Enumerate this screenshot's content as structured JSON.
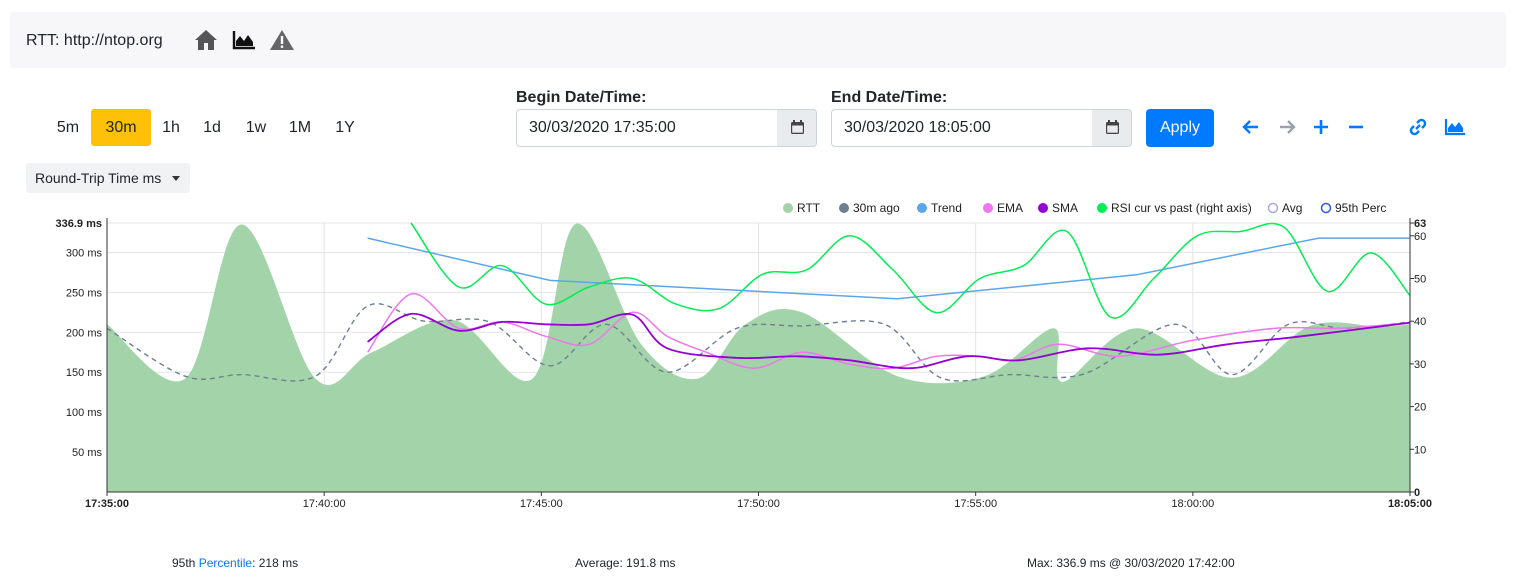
{
  "header": {
    "title": "RTT: http://ntop.org",
    "icons": [
      "home-icon",
      "area-chart-icon",
      "warning-icon"
    ]
  },
  "ranges": [
    {
      "label": "5m",
      "active": false
    },
    {
      "label": "30m",
      "active": true
    },
    {
      "label": "1h",
      "active": false
    },
    {
      "label": "1d",
      "active": false
    },
    {
      "label": "1w",
      "active": false
    },
    {
      "label": "1M",
      "active": false
    },
    {
      "label": "1Y",
      "active": false
    }
  ],
  "begin": {
    "label": "Begin Date/Time:",
    "value": "30/03/2020 17:35:00"
  },
  "end": {
    "label": "End Date/Time:",
    "value": "30/03/2020 18:05:00"
  },
  "apply_label": "Apply",
  "nav_icons": [
    "arrow-left-icon",
    "arrow-right-icon",
    "zoom-in-icon",
    "zoom-out-icon",
    "link-icon",
    "area-chart-icon"
  ],
  "metric": {
    "selected": "Round-Trip Time ms"
  },
  "colors": {
    "rtt": "#a3d4a9",
    "ago": "#6e7f91",
    "trend": "#5aa6e8",
    "ema": "#ee77ee",
    "sma": "#9400d3",
    "rsi": "#00ee55",
    "avg": "#a9a9d9",
    "perc": "#3355ee",
    "accent": "#007bff",
    "active": "#ffc107"
  },
  "chart_data": {
    "type": "area",
    "x_unit": "time",
    "x_ticks": [
      "17:35:00",
      "17:40:00",
      "17:45:00",
      "17:50:00",
      "17:55:00",
      "18:00:00",
      "18:05:00"
    ],
    "y_ticks_left": [
      "336.9 ms",
      "300 ms",
      "250 ms",
      "200 ms",
      "150 ms",
      "100 ms",
      "50 ms"
    ],
    "y_left_max": 336.9,
    "y_ticks_right": [
      "63",
      "60",
      "50",
      "40",
      "30",
      "20",
      "10",
      "0"
    ],
    "y_right_max": 63,
    "legend": [
      "RTT",
      "30m ago",
      "Trend",
      "EMA",
      "SMA",
      "RSI cur vs past (right axis)",
      "Avg",
      "95th Perc"
    ],
    "series": [
      {
        "name": "RTT",
        "x_min": [
          0,
          1.8,
          3.1,
          4.8,
          6.1,
          8,
          9.8,
          10.8,
          12.3,
          13.6,
          14.7,
          16,
          18.2,
          20.2,
          21.8,
          22,
          23.7,
          25.9,
          27.7,
          29.3,
          30
        ],
        "y": [
          210,
          142,
          335,
          142,
          175,
          215,
          142,
          336,
          185,
          142,
          210,
          225,
          145,
          145,
          205,
          138,
          205,
          143,
          208,
          207,
          210
        ]
      },
      {
        "name": "30m ago",
        "x_min": [
          0,
          1.8,
          3.1,
          4.8,
          6,
          7.3,
          8.8,
          10.2,
          11.5,
          12.9,
          14.5,
          16,
          17.9,
          19.2,
          20.8,
          22.5,
          24.6,
          25.9,
          27.2,
          28.5,
          30
        ],
        "y": [
          205,
          145,
          147,
          145,
          233,
          214,
          213,
          158,
          210,
          150,
          205,
          208,
          210,
          143,
          147,
          148,
          210,
          147,
          210,
          205,
          213
        ]
      },
      {
        "name": "Trend",
        "x_min": [
          6,
          10.2,
          14.4,
          18.2,
          23.7,
          27.9,
          30
        ],
        "y": [
          318,
          265,
          253,
          242,
          272,
          318,
          318
        ]
      },
      {
        "name": "EMA",
        "x_min": [
          6,
          7,
          8.1,
          9.1,
          10.1,
          11.1,
          12.1,
          12.9,
          13.8,
          14.9,
          16,
          17.1,
          18.1,
          19.1,
          20.1,
          20.9,
          21.9,
          23.3,
          25,
          26.9,
          28.4,
          30
        ],
        "y": [
          175,
          248,
          205,
          213,
          195,
          185,
          225,
          195,
          175,
          155,
          175,
          160,
          155,
          170,
          170,
          165,
          185,
          170,
          190,
          205,
          205,
          212
        ]
      },
      {
        "name": "SMA",
        "x_min": [
          6,
          7,
          8.1,
          9.1,
          10.1,
          11.1,
          12.1,
          12.9,
          14.5,
          15.9,
          17.1,
          18.5,
          19.8,
          21,
          22.6,
          24.2,
          25.8,
          27.5,
          30
        ],
        "y": [
          188,
          223,
          202,
          213,
          210,
          210,
          222,
          180,
          168,
          170,
          165,
          155,
          170,
          165,
          180,
          172,
          185,
          195,
          212
        ]
      },
      {
        "name": "RSI cur vs past (right axis)",
        "x_min": [
          7,
          8.1,
          9.1,
          10.1,
          11.1,
          12.1,
          13.1,
          14.1,
          15.1,
          16.1,
          17.1,
          18.1,
          19.1,
          20.1,
          21.1,
          22.1,
          23.1,
          24.1,
          25.1,
          26.1,
          27.1,
          28.1,
          29.1,
          30
        ],
        "y": [
          63,
          48,
          53,
          44,
          48,
          50,
          44,
          43,
          51,
          52,
          60,
          52,
          42,
          50,
          53,
          61,
          41,
          50,
          60,
          61,
          62,
          47,
          56,
          46
        ]
      }
    ]
  },
  "stats": {
    "perc_prefix": "95th ",
    "perc_link": "Percentile",
    "perc_value": ": 218 ms",
    "average": "Average: 191.8 ms",
    "max": "Max: 336.9 ms @ 30/03/2020 17:42:00"
  }
}
